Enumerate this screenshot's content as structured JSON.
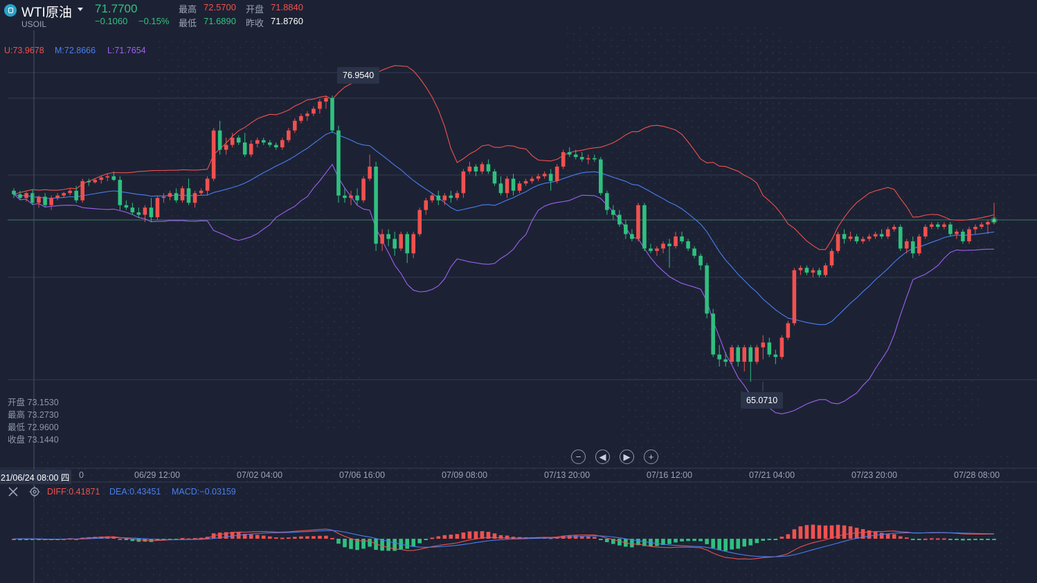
{
  "header": {
    "symbol_name": "WTI原油",
    "symbol_code": "USOIL",
    "last_price": "71.7700",
    "change": "−0.1060",
    "change_pct": "−0.15%",
    "high_label": "最高",
    "high_value": "72.5700",
    "open_label": "开盘",
    "open_value": "71.8840",
    "low_label": "最低",
    "low_value": "71.6890",
    "prev_close_label": "昨收",
    "prev_close_value": "71.8760"
  },
  "boll": {
    "upper": "U:73.9678",
    "middle": "M:72.8666",
    "lower": "L:71.7654"
  },
  "crosshair_ohlc": [
    {
      "label": "开盘",
      "value": "73.1530"
    },
    {
      "label": "最高",
      "value": "73.2730"
    },
    {
      "label": "最低",
      "value": "72.9600"
    },
    {
      "label": "收盘",
      "value": "73.1440"
    }
  ],
  "crosshair_time": "21/06/24 08:00 四",
  "max_marker": "76.9540",
  "min_marker": "65.0710",
  "x_axis_labels": [
    "0",
    "06/29 12:00",
    "07/02 04:00",
    "07/06 16:00",
    "07/09 08:00",
    "07/13 20:00",
    "07/16 12:00",
    "07/21 04:00",
    "07/23 20:00",
    "07/28 08:00"
  ],
  "macd": {
    "diff": "DIFF:0.41871",
    "dea": "DEA:0.43451",
    "macd": "MACD:−0.03159"
  },
  "colors": {
    "up": "#f0514f",
    "down": "#2fc07f",
    "mid": "#4a7ef0",
    "lower": "#a160f0",
    "upper": "#f0514f",
    "bg": "#1c2234"
  },
  "icons": [
    "close-icon",
    "eye-icon",
    "zoom-out-icon",
    "prev-icon",
    "next-icon",
    "zoom-in-icon",
    "logo-icon",
    "caret-down-icon"
  ],
  "chart_data": {
    "type": "candlestick",
    "price_anchors": [
      {
        "price": 76.954
      },
      {
        "price": 65.071
      }
    ],
    "candles": [
      [
        73.0,
        73.1,
        72.7,
        72.85
      ],
      [
        72.85,
        73.0,
        72.6,
        72.7
      ],
      [
        72.7,
        72.95,
        72.55,
        72.9
      ],
      [
        72.9,
        73.05,
        72.4,
        72.5
      ],
      [
        72.5,
        72.8,
        72.3,
        72.75
      ],
      [
        72.75,
        72.9,
        72.3,
        72.4
      ],
      [
        72.4,
        72.8,
        72.2,
        72.7
      ],
      [
        72.7,
        72.9,
        72.6,
        72.8
      ],
      [
        72.8,
        72.95,
        72.7,
        72.9
      ],
      [
        72.9,
        73.1,
        72.8,
        73.0
      ],
      [
        73.0,
        73.2,
        72.5,
        72.6
      ],
      [
        72.6,
        73.5,
        72.5,
        73.4
      ],
      [
        73.4,
        73.5,
        73.2,
        73.35
      ],
      [
        73.35,
        73.5,
        73.3,
        73.45
      ],
      [
        73.45,
        73.6,
        73.3,
        73.55
      ],
      [
        73.55,
        73.7,
        73.4,
        73.6
      ],
      [
        73.6,
        73.8,
        73.4,
        73.45
      ],
      [
        73.45,
        73.6,
        72.2,
        72.4
      ],
      [
        72.4,
        72.6,
        72.2,
        72.3
      ],
      [
        72.3,
        72.5,
        72.0,
        72.1
      ],
      [
        72.1,
        72.3,
        71.9,
        72.0
      ],
      [
        72.0,
        72.4,
        71.7,
        72.3
      ],
      [
        72.3,
        72.7,
        71.7,
        71.9
      ],
      [
        71.9,
        72.8,
        71.8,
        72.7
      ],
      [
        72.7,
        72.9,
        72.5,
        72.75
      ],
      [
        72.75,
        73.0,
        72.6,
        72.9
      ],
      [
        72.9,
        73.1,
        72.5,
        72.6
      ],
      [
        72.6,
        73.2,
        72.5,
        73.1
      ],
      [
        73.1,
        73.5,
        72.4,
        72.5
      ],
      [
        72.5,
        73.0,
        72.3,
        72.9
      ],
      [
        72.9,
        73.1,
        72.8,
        73.0
      ],
      [
        73.0,
        73.6,
        72.8,
        73.5
      ],
      [
        73.5,
        75.6,
        73.4,
        75.5
      ],
      [
        75.5,
        75.9,
        74.5,
        74.7
      ],
      [
        74.7,
        75.2,
        74.5,
        74.9
      ],
      [
        74.9,
        75.4,
        74.8,
        75.2
      ],
      [
        75.2,
        75.3,
        74.9,
        75.0
      ],
      [
        75.0,
        75.4,
        74.4,
        74.5
      ],
      [
        74.5,
        75.1,
        74.4,
        74.95
      ],
      [
        74.95,
        75.2,
        74.8,
        75.1
      ],
      [
        75.1,
        75.2,
        74.9,
        75.0
      ],
      [
        75.0,
        75.1,
        74.8,
        74.9
      ],
      [
        74.9,
        75.0,
        74.7,
        74.8
      ],
      [
        74.8,
        75.2,
        74.7,
        75.1
      ],
      [
        75.1,
        75.6,
        75.0,
        75.5
      ],
      [
        75.5,
        76.0,
        75.4,
        75.9
      ],
      [
        75.9,
        76.2,
        75.8,
        76.1
      ],
      [
        76.1,
        76.3,
        75.9,
        76.2
      ],
      [
        76.2,
        76.5,
        76.1,
        76.4
      ],
      [
        76.4,
        76.8,
        76.2,
        76.7
      ],
      [
        76.7,
        76.95,
        76.4,
        76.85
      ],
      [
        76.85,
        76.95,
        75.4,
        75.5
      ],
      [
        75.5,
        75.7,
        72.5,
        72.8
      ],
      [
        72.8,
        73.1,
        72.5,
        72.7
      ],
      [
        72.7,
        73.0,
        72.4,
        72.8
      ],
      [
        72.8,
        73.1,
        72.4,
        72.6
      ],
      [
        72.6,
        73.6,
        72.5,
        73.5
      ],
      [
        73.5,
        74.5,
        73.4,
        74.0
      ],
      [
        74.0,
        74.2,
        70.5,
        70.8
      ],
      [
        70.8,
        71.4,
        70.5,
        71.2
      ],
      [
        71.2,
        71.4,
        70.7,
        71.0
      ],
      [
        71.0,
        71.3,
        70.3,
        70.6
      ],
      [
        70.6,
        71.3,
        70.5,
        71.2
      ],
      [
        71.2,
        71.3,
        70.0,
        70.4
      ],
      [
        70.4,
        71.3,
        70.2,
        71.2
      ],
      [
        71.2,
        72.3,
        71.1,
        72.2
      ],
      [
        72.2,
        72.7,
        72.0,
        72.6
      ],
      [
        72.6,
        72.9,
        72.5,
        72.8
      ],
      [
        72.8,
        73.0,
        72.4,
        72.6
      ],
      [
        72.6,
        72.9,
        72.4,
        72.8
      ],
      [
        72.8,
        73.0,
        72.5,
        72.7
      ],
      [
        72.7,
        73.0,
        72.6,
        72.9
      ],
      [
        72.9,
        73.9,
        72.7,
        73.8
      ],
      [
        73.8,
        74.2,
        73.7,
        74.0
      ],
      [
        74.0,
        74.1,
        73.6,
        73.8
      ],
      [
        73.8,
        74.2,
        73.7,
        74.1
      ],
      [
        74.1,
        74.3,
        73.7,
        73.8
      ],
      [
        73.8,
        73.9,
        73.2,
        73.3
      ],
      [
        73.3,
        73.6,
        72.8,
        72.9
      ],
      [
        72.9,
        73.6,
        72.7,
        73.5
      ],
      [
        73.5,
        73.7,
        72.8,
        73.0
      ],
      [
        73.0,
        73.4,
        72.9,
        73.3
      ],
      [
        73.3,
        73.5,
        73.2,
        73.4
      ],
      [
        73.4,
        73.6,
        73.3,
        73.5
      ],
      [
        73.5,
        73.7,
        73.4,
        73.6
      ],
      [
        73.6,
        73.8,
        73.5,
        73.7
      ],
      [
        73.7,
        73.9,
        73.0,
        73.4
      ],
      [
        73.4,
        74.1,
        73.3,
        74.0
      ],
      [
        74.0,
        74.7,
        73.9,
        74.6
      ],
      [
        74.6,
        74.8,
        74.4,
        74.5
      ],
      [
        74.5,
        74.7,
        74.3,
        74.4
      ],
      [
        74.4,
        74.6,
        74.2,
        74.3
      ],
      [
        74.3,
        74.5,
        74.1,
        74.35
      ],
      [
        74.35,
        74.5,
        74.2,
        74.3
      ],
      [
        74.3,
        74.4,
        72.8,
        72.9
      ],
      [
        72.9,
        73.0,
        72.0,
        72.2
      ],
      [
        72.2,
        72.4,
        71.8,
        72.0
      ],
      [
        72.0,
        72.2,
        71.5,
        71.6
      ],
      [
        71.6,
        71.8,
        71.0,
        71.2
      ],
      [
        71.2,
        71.4,
        70.9,
        71.0
      ],
      [
        71.0,
        72.5,
        70.9,
        72.4
      ],
      [
        72.4,
        72.5,
        70.5,
        70.6
      ],
      [
        70.6,
        70.8,
        70.4,
        70.5
      ],
      [
        70.5,
        70.7,
        70.3,
        70.6
      ],
      [
        70.6,
        70.9,
        70.4,
        70.8
      ],
      [
        70.8,
        71.0,
        69.8,
        70.7
      ],
      [
        70.7,
        71.3,
        70.6,
        71.1
      ],
      [
        71.1,
        71.3,
        70.8,
        70.9
      ],
      [
        70.9,
        71.0,
        70.5,
        70.6
      ],
      [
        70.6,
        70.7,
        70.2,
        70.3
      ],
      [
        70.3,
        70.4,
        69.7,
        69.9
      ],
      [
        69.9,
        70.0,
        67.7,
        67.9
      ],
      [
        67.9,
        68.1,
        66.1,
        66.2
      ],
      [
        66.2,
        66.6,
        65.7,
        66.0
      ],
      [
        66.0,
        66.3,
        65.7,
        65.9
      ],
      [
        65.9,
        66.6,
        65.8,
        66.5
      ],
      [
        66.5,
        66.6,
        65.7,
        65.9
      ],
      [
        65.9,
        66.6,
        65.5,
        66.5
      ],
      [
        66.5,
        66.6,
        65.07,
        65.9
      ],
      [
        65.9,
        66.6,
        65.8,
        66.5
      ],
      [
        66.5,
        67.0,
        66.0,
        66.7
      ],
      [
        66.7,
        66.9,
        66.1,
        66.2
      ],
      [
        66.2,
        66.4,
        65.8,
        66.1
      ],
      [
        66.1,
        67.0,
        66.0,
        66.9
      ],
      [
        66.9,
        67.6,
        66.8,
        67.5
      ],
      [
        67.5,
        69.8,
        67.4,
        69.7
      ],
      [
        69.7,
        69.9,
        69.5,
        69.8
      ],
      [
        69.8,
        69.9,
        69.5,
        69.6
      ],
      [
        69.6,
        69.8,
        69.4,
        69.7
      ],
      [
        69.7,
        69.8,
        69.4,
        69.5
      ],
      [
        69.5,
        70.0,
        69.4,
        69.9
      ],
      [
        69.9,
        70.6,
        69.8,
        70.5
      ],
      [
        70.5,
        71.3,
        70.4,
        71.2
      ],
      [
        71.2,
        71.4,
        70.8,
        71.0
      ],
      [
        71.0,
        71.3,
        70.9,
        71.1
      ],
      [
        71.1,
        71.2,
        70.8,
        70.9
      ],
      [
        70.9,
        71.1,
        70.8,
        71.0
      ],
      [
        71.0,
        71.2,
        70.9,
        71.1
      ],
      [
        71.1,
        71.3,
        71.0,
        71.2
      ],
      [
        71.2,
        71.4,
        71.0,
        71.1
      ],
      [
        71.1,
        71.5,
        71.0,
        71.4
      ],
      [
        71.4,
        71.6,
        71.3,
        71.5
      ],
      [
        71.5,
        71.6,
        70.5,
        70.6
      ],
      [
        70.6,
        71.0,
        70.4,
        70.9
      ],
      [
        70.9,
        71.1,
        70.2,
        70.4
      ],
      [
        70.4,
        71.2,
        70.3,
        71.1
      ],
      [
        71.1,
        71.6,
        71.0,
        71.5
      ],
      [
        71.5,
        71.7,
        71.4,
        71.6
      ],
      [
        71.6,
        71.7,
        71.4,
        71.5
      ],
      [
        71.5,
        71.7,
        71.4,
        71.6
      ],
      [
        71.6,
        71.7,
        71.1,
        71.2
      ],
      [
        71.2,
        71.4,
        71.0,
        71.3
      ],
      [
        71.3,
        71.4,
        70.8,
        70.9
      ],
      [
        70.9,
        71.5,
        70.8,
        71.4
      ],
      [
        71.4,
        71.6,
        71.2,
        71.5
      ],
      [
        71.5,
        71.7,
        71.4,
        71.6
      ],
      [
        71.6,
        71.8,
        71.2,
        71.7
      ],
      [
        71.7,
        72.5,
        71.6,
        71.77
      ]
    ]
  }
}
